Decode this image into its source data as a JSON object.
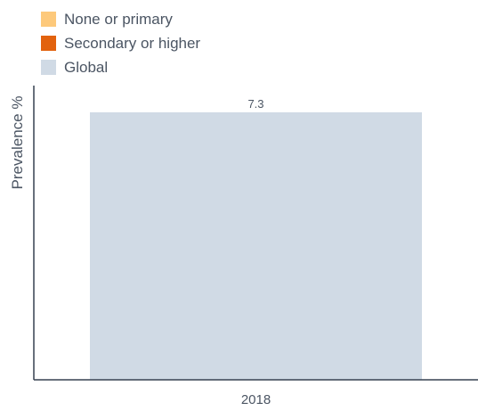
{
  "chart_data": {
    "type": "bar",
    "categories": [
      "2018"
    ],
    "series": [
      {
        "name": "None or primary",
        "color": "#fdc97b",
        "values": [
          null
        ]
      },
      {
        "name": "Secondary or higher",
        "color": "#e2620e",
        "values": [
          null
        ]
      },
      {
        "name": "Global",
        "color": "#d0dae5",
        "values": [
          7.3
        ]
      }
    ],
    "data_labels": [
      "7.3"
    ],
    "ylabel": "Prevalence %",
    "xlabel": "",
    "ylim": [
      0,
      7.3
    ],
    "grid": false,
    "legend_position": "top-left"
  },
  "colors": {
    "axis": "#374151",
    "text": "#4b5563"
  }
}
